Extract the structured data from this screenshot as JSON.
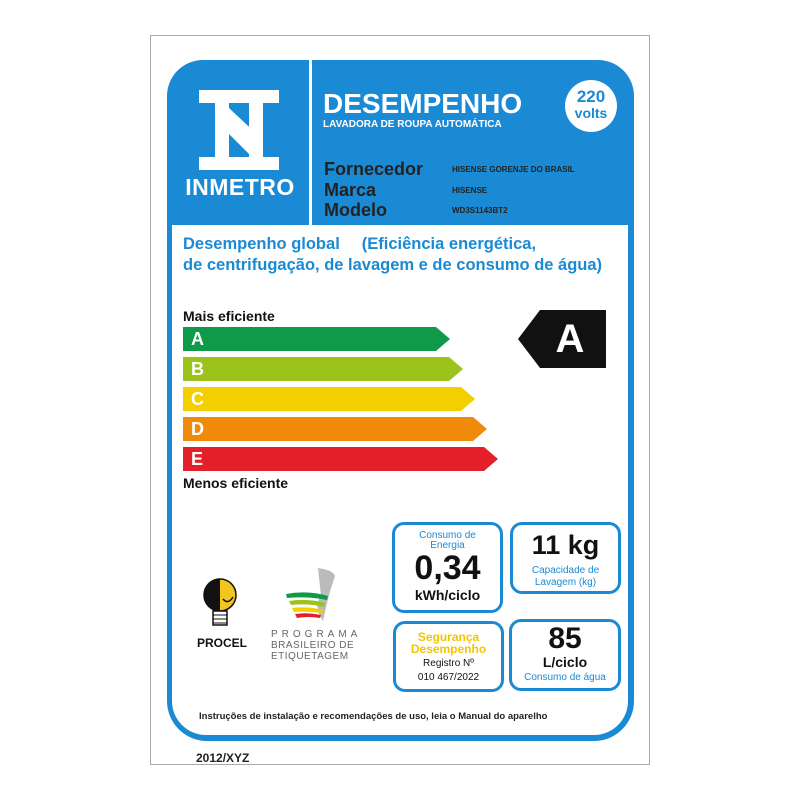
{
  "header": {
    "brand": "INMETRO",
    "title": "DESEMPENHO",
    "subtitle": "LAVADORA DE ROUPA AUTOMÁTICA",
    "voltage_value": "220",
    "voltage_unit": "volts",
    "fields": [
      {
        "label": "Fornecedor",
        "value": "HISENSE GORENJE DO BRASIL"
      },
      {
        "label": "Marca",
        "value": "HISENSE"
      },
      {
        "label": "Modelo",
        "value": "WD3S1143BT2"
      }
    ]
  },
  "rating": {
    "title_line1": "Desempenho global",
    "title_paren": "(Eficiência energética,",
    "title_line2": "de centrifugação, de lavagem e de consumo de água)",
    "top_label": "Mais eficiente",
    "bottom_label": "Menos eficiente",
    "classes": [
      {
        "letter": "A",
        "color": "#0e9a48"
      },
      {
        "letter": "B",
        "color": "#9bc31c"
      },
      {
        "letter": "C",
        "color": "#f3cf00"
      },
      {
        "letter": "D",
        "color": "#ef8a0b"
      },
      {
        "letter": "E",
        "color": "#e3202a"
      }
    ],
    "current": "A"
  },
  "energy": {
    "label": "Consumo de Energia",
    "value": "0,34",
    "unit": "kWh/ciclo"
  },
  "capacity": {
    "value": "11 kg",
    "label": "Capacidade de Lavagem (kg)"
  },
  "safety": {
    "line1": "Segurança",
    "line2": "Desempenho",
    "reg_label": "Registro Nº",
    "reg_value": "010 467/2022"
  },
  "water": {
    "value": "85",
    "unit": "L/ciclo",
    "label": "Consumo  de água"
  },
  "logos": {
    "procel": "PROCEL",
    "pbe1": "PROGRAMA",
    "pbe2": "BRASILEIRO DE",
    "pbe3": "ETIQUETAGEM"
  },
  "footer": "Instruções de instalação e recomendações de uso, leia o Manual do aparelho",
  "code": "2012/XYZ"
}
